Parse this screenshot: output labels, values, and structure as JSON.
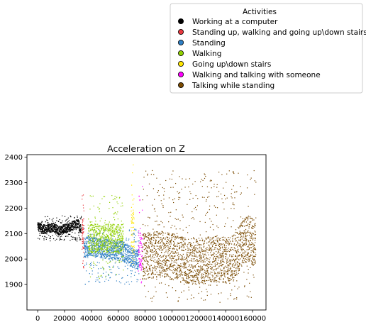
{
  "chart_data": {
    "type": "scatter",
    "title": "Acceleration on Z",
    "xlabel": "",
    "ylabel": "",
    "xlim": [
      -8000,
      170000
    ],
    "ylim": [
      1800,
      2410
    ],
    "xticks": [
      0,
      20000,
      40000,
      60000,
      80000,
      100000,
      120000,
      140000,
      160000
    ],
    "yticks": [
      1900,
      2000,
      2100,
      2200,
      2300,
      2400
    ],
    "grid": false,
    "legend": {
      "title": "Activities",
      "placement": "upper-right, outside plot"
    },
    "series": [
      {
        "name": "Working at a computer",
        "color": "#000000",
        "segments": [
          [
            0,
            2130
          ],
          [
            4000,
            2115
          ],
          [
            8000,
            2120
          ],
          [
            12000,
            2125
          ],
          [
            16000,
            2110
          ],
          [
            20000,
            2120
          ],
          [
            24000,
            2125
          ],
          [
            28000,
            2135
          ],
          [
            30000,
            2140
          ],
          [
            32000,
            2120
          ]
        ],
        "band_low": 2070,
        "band_high": 2170,
        "x_range": [
          0,
          32500
        ]
      },
      {
        "name": "Standing up, walking and going up\\down stairs",
        "color": "#e8393f",
        "segments": [
          [
            33000,
            2120
          ],
          [
            34500,
            2070
          ]
        ],
        "band_low": 1960,
        "band_high": 2260,
        "x_range": [
          33000,
          34500
        ]
      },
      {
        "name": "Standing",
        "color": "#2e7fc4",
        "segments": [
          [
            34500,
            2040
          ],
          [
            37500,
            2050
          ],
          [
            64000,
            2030
          ],
          [
            69500,
            2010
          ],
          [
            72000,
            2000
          ],
          [
            75500,
            2000
          ]
        ],
        "band_low": 1900,
        "band_high": 2120,
        "x_range": [
          34500,
          75500
        ]
      },
      {
        "name": "Walking",
        "color": "#90d000",
        "segments": [
          [
            37500,
            2080
          ],
          [
            50000,
            2080
          ],
          [
            64000,
            2080
          ]
        ],
        "band_low": 1920,
        "band_high": 2250,
        "x_range": [
          37500,
          64000
        ]
      },
      {
        "name": "Going up\\down stairs",
        "color": "#ffe600",
        "segments": [
          [
            69500,
            2120
          ],
          [
            72000,
            2100
          ]
        ],
        "band_low": 1870,
        "band_high": 2370,
        "x_range": [
          69500,
          72000
        ]
      },
      {
        "name": "Walking and talking with someone",
        "color": "#ff00ff",
        "segments": [
          [
            75000,
            2040
          ],
          [
            78000,
            2020
          ]
        ],
        "band_low": 1900,
        "band_high": 2320,
        "x_range": [
          75000,
          78000
        ]
      },
      {
        "name": "Talking while standing",
        "color": "#7a4a00",
        "segments": [
          [
            78000,
            2010
          ],
          [
            90000,
            2020
          ],
          [
            100000,
            2010
          ],
          [
            110000,
            1995
          ],
          [
            120000,
            1990
          ],
          [
            130000,
            2000
          ],
          [
            140000,
            1995
          ],
          [
            148000,
            2010
          ],
          [
            152000,
            2060
          ],
          [
            157000,
            2080
          ],
          [
            162000,
            2060
          ]
        ],
        "band_low": 1830,
        "band_high": 2350,
        "x_range": [
          78000,
          162500
        ]
      }
    ]
  }
}
